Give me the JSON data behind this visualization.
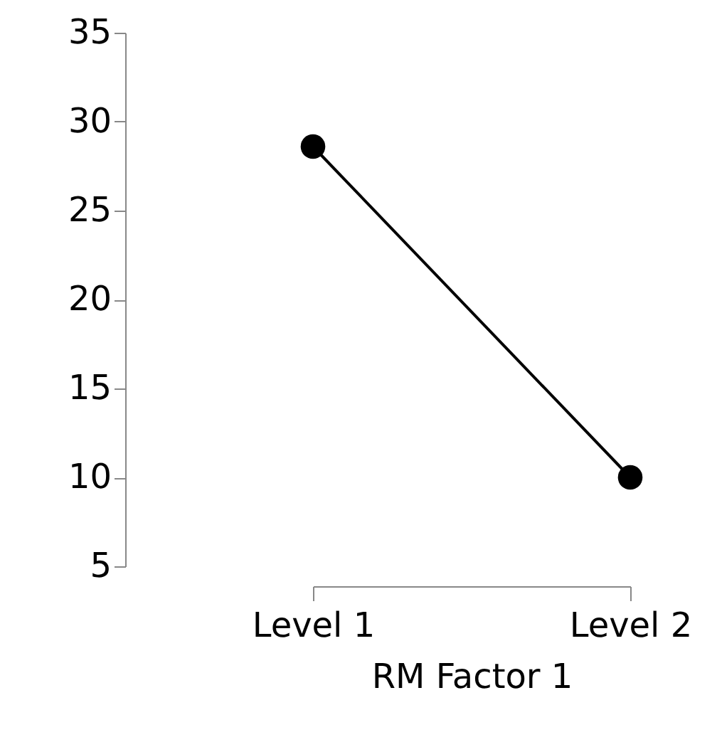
{
  "chart_data": {
    "type": "line",
    "categories": [
      "Level 1",
      "Level 2"
    ],
    "values": [
      28.6,
      10.0
    ],
    "color": "#000000",
    "xlabel": "RM Factor 1",
    "ylim": [
      5,
      35
    ],
    "yticks": [
      5,
      10,
      15,
      20,
      25,
      30,
      35
    ],
    "marker": "circle",
    "line_style": "solid",
    "grid": false
  }
}
